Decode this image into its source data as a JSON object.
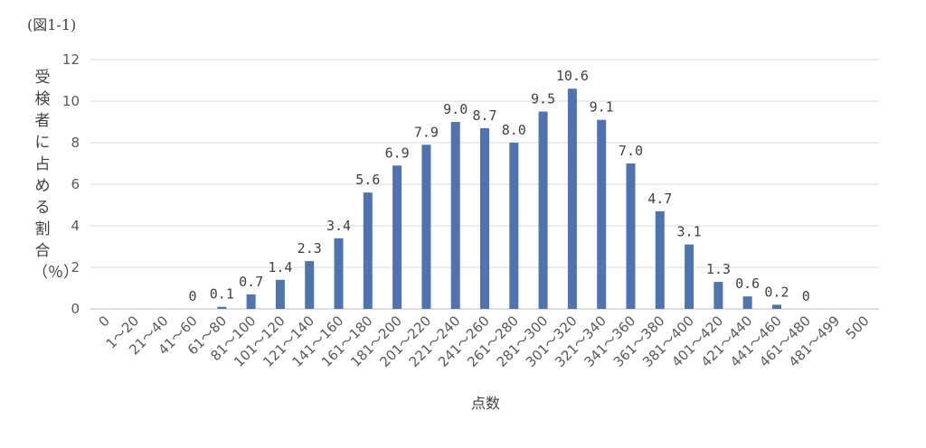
{
  "figure_label": "(図1-1)",
  "chart_data": {
    "type": "bar",
    "xlabel": "点数",
    "ylabel": "受検者に占める割合（％）",
    "ylim": [
      0,
      12
    ],
    "yticks": [
      0,
      2,
      4,
      6,
      8,
      10,
      12
    ],
    "grid": true,
    "color": "#4F73B0",
    "categories": [
      "0",
      "1～20",
      "21～40",
      "41～60",
      "61～80",
      "81～100",
      "101～120",
      "121～140",
      "141～160",
      "161～180",
      "181～200",
      "201～220",
      "221～240",
      "241～260",
      "261～280",
      "281～300",
      "301～320",
      "321～340",
      "341～360",
      "361～380",
      "381～400",
      "401～420",
      "421～440",
      "441～460",
      "461～480",
      "481～499",
      "500"
    ],
    "values": [
      null,
      null,
      null,
      0,
      0.1,
      0.7,
      1.4,
      2.3,
      3.4,
      5.6,
      6.9,
      7.9,
      9.0,
      8.7,
      8.0,
      9.5,
      10.6,
      9.1,
      7.0,
      4.7,
      3.1,
      1.3,
      0.6,
      0.2,
      0,
      null,
      null
    ],
    "data_labels": [
      "",
      "",
      "",
      "0",
      "0.1",
      "0.7",
      "1.4",
      "2.3",
      "3.4",
      "5.6",
      "6.9",
      "7.9",
      "9.0",
      "8.7",
      "8.0",
      "9.5",
      "10.6",
      "9.1",
      "7.0",
      "4.7",
      "3.1",
      "1.3",
      "0.6",
      "0.2",
      "0",
      "",
      ""
    ]
  }
}
